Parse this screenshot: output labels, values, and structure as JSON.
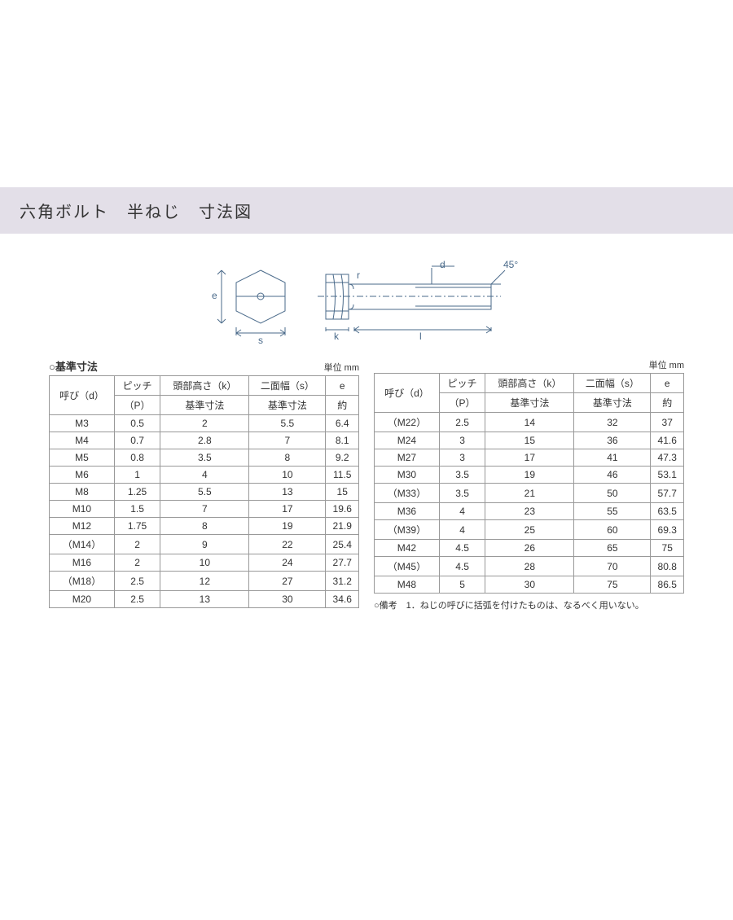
{
  "header": {
    "title": "六角ボルト　半ねじ　寸法図"
  },
  "diagram": {
    "labels": {
      "e": "e",
      "s": "s",
      "k": "k",
      "l": "l",
      "d": "d",
      "r": "r",
      "angle": "45°"
    },
    "stroke": "#4a6a8a",
    "fill": "#ffffff"
  },
  "table_left": {
    "title": "○基準寸法",
    "unit": "単位 mm",
    "headers": {
      "col1_top": "呼び（d）",
      "col2_top": "ピッチ",
      "col2_bot": "（P）",
      "col3_top": "頭部高さ（k）",
      "col3_bot": "基準寸法",
      "col4_top": "二面幅（s）",
      "col4_bot": "基準寸法",
      "col5_top": "e",
      "col5_bot": "約"
    },
    "rows": [
      [
        "M3",
        "0.5",
        "2",
        "5.5",
        "6.4"
      ],
      [
        "M4",
        "0.7",
        "2.8",
        "7",
        "8.1"
      ],
      [
        "M5",
        "0.8",
        "3.5",
        "8",
        "9.2"
      ],
      [
        "M6",
        "1",
        "4",
        "10",
        "11.5"
      ],
      [
        "M8",
        "1.25",
        "5.5",
        "13",
        "15"
      ],
      [
        "M10",
        "1.5",
        "7",
        "17",
        "19.6"
      ],
      [
        "M12",
        "1.75",
        "8",
        "19",
        "21.9"
      ],
      [
        "（M14）",
        "2",
        "9",
        "22",
        "25.4"
      ],
      [
        "M16",
        "2",
        "10",
        "24",
        "27.7"
      ],
      [
        "（M18）",
        "2.5",
        "12",
        "27",
        "31.2"
      ],
      [
        "M20",
        "2.5",
        "13",
        "30",
        "34.6"
      ]
    ]
  },
  "table_right": {
    "title": "",
    "unit": "単位 mm",
    "headers": {
      "col1_top": "呼び（d）",
      "col2_top": "ピッチ",
      "col2_bot": "（P）",
      "col3_top": "頭部高さ（k）",
      "col3_bot": "基準寸法",
      "col4_top": "二面幅（s）",
      "col4_bot": "基準寸法",
      "col5_top": "e",
      "col5_bot": "約"
    },
    "rows": [
      [
        "（M22）",
        "2.5",
        "14",
        "32",
        "37"
      ],
      [
        "M24",
        "3",
        "15",
        "36",
        "41.6"
      ],
      [
        "M27",
        "3",
        "17",
        "41",
        "47.3"
      ],
      [
        "M30",
        "3.5",
        "19",
        "46",
        "53.1"
      ],
      [
        "（M33）",
        "3.5",
        "21",
        "50",
        "57.7"
      ],
      [
        "M36",
        "4",
        "23",
        "55",
        "63.5"
      ],
      [
        "（M39）",
        "4",
        "25",
        "60",
        "69.3"
      ],
      [
        "M42",
        "4.5",
        "26",
        "65",
        "75"
      ],
      [
        "（M45）",
        "4.5",
        "28",
        "70",
        "80.8"
      ],
      [
        "M48",
        "5",
        "30",
        "75",
        "86.5"
      ]
    ],
    "footnote": "○備考　1．ねじの呼びに括弧を付けたものは、なるべく用いない。"
  },
  "colors": {
    "header_bg": "#e3dfe8",
    "border": "#999999",
    "text": "#333333",
    "diagram_stroke": "#4a6a8a"
  }
}
